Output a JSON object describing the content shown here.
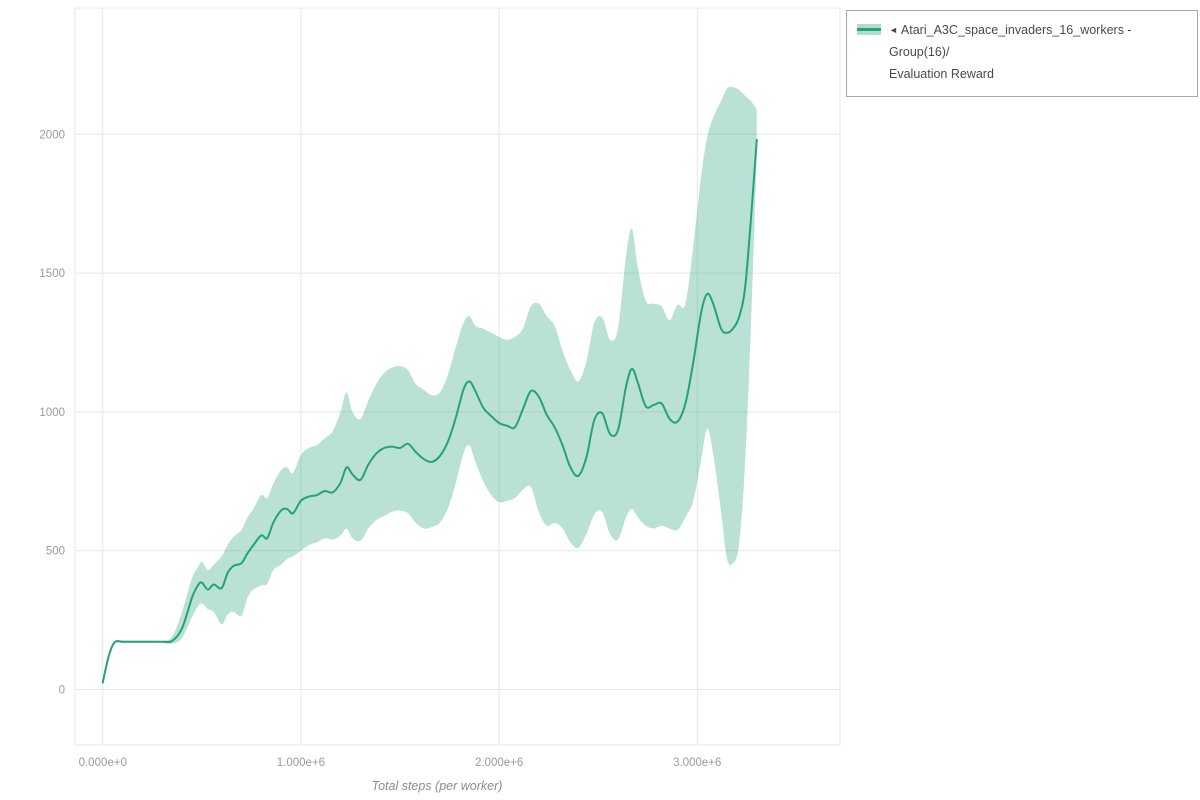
{
  "legend": {
    "collapse_arrow": "◄",
    "label_line1": "Atari_A3C_space_invaders_16_workers - Group(16)/",
    "label_line2": "Evaluation Reward"
  },
  "axes": {
    "x_label": "Total steps (per worker)",
    "x_ticks": [
      {
        "value": 0,
        "label": "0.000e+0"
      },
      {
        "value": 1000000,
        "label": "1.000e+6"
      },
      {
        "value": 2000000,
        "label": "2.000e+6"
      },
      {
        "value": 3000000,
        "label": "3.000e+6"
      }
    ],
    "y_ticks": [
      {
        "value": 0,
        "label": "0"
      },
      {
        "value": 500,
        "label": "500"
      },
      {
        "value": 1000,
        "label": "1000"
      },
      {
        "value": 1500,
        "label": "1500"
      },
      {
        "value": 2000,
        "label": "2000"
      }
    ]
  },
  "colors": {
    "line": "#26a17d",
    "band_fill": "#26a17d",
    "band_opacity": 0.32,
    "swatch_fill": "#b3dccb",
    "grid": "#e7e7e7",
    "tick_text": "#9b9b9b",
    "axis_label_text": "#8c8c8c",
    "legend_border": "#a6a6a6",
    "legend_text": "#4a4a4a",
    "background": "#ffffff"
  },
  "chart_data": {
    "type": "line",
    "title": "",
    "xlabel": "Total steps (per worker)",
    "ylabel": "",
    "xlim": [
      -140000,
      3720000
    ],
    "ylim": [
      -200,
      2455
    ],
    "grid": true,
    "legend_position": "top-right-outside",
    "series": [
      {
        "name": "Atari_A3C_space_invaders_16_workers - Group(16)/Evaluation Reward",
        "x": [
          0,
          30000,
          60000,
          100000,
          150000,
          200000,
          250000,
          300000,
          350000,
          400000,
          450000,
          480000,
          500000,
          530000,
          560000,
          600000,
          630000,
          660000,
          700000,
          730000,
          760000,
          800000,
          830000,
          860000,
          900000,
          930000,
          960000,
          1000000,
          1040000,
          1080000,
          1120000,
          1160000,
          1200000,
          1230000,
          1260000,
          1300000,
          1340000,
          1380000,
          1420000,
          1460000,
          1500000,
          1540000,
          1580000,
          1620000,
          1660000,
          1700000,
          1740000,
          1780000,
          1820000,
          1850000,
          1880000,
          1920000,
          1960000,
          2000000,
          2040000,
          2080000,
          2120000,
          2160000,
          2200000,
          2240000,
          2280000,
          2320000,
          2360000,
          2400000,
          2440000,
          2480000,
          2520000,
          2560000,
          2600000,
          2640000,
          2670000,
          2700000,
          2740000,
          2780000,
          2820000,
          2860000,
          2900000,
          2940000,
          2980000,
          3020000,
          3050000,
          3080000,
          3120000,
          3150000,
          3180000,
          3210000,
          3240000,
          3270000,
          3300000
        ],
        "mean": [
          25,
          120,
          170,
          172,
          172,
          172,
          172,
          172,
          175,
          220,
          330,
          375,
          385,
          360,
          378,
          365,
          420,
          445,
          455,
          490,
          520,
          555,
          545,
          600,
          645,
          650,
          635,
          680,
          695,
          700,
          715,
          710,
          745,
          800,
          775,
          755,
          810,
          850,
          870,
          875,
          870,
          885,
          855,
          830,
          820,
          840,
          890,
          975,
          1080,
          1110,
          1075,
          1015,
          985,
          960,
          950,
          945,
          1010,
          1075,
          1055,
          990,
          945,
          880,
          800,
          770,
          835,
          970,
          995,
          920,
          935,
          1090,
          1155,
          1105,
          1020,
          1025,
          1030,
          975,
          965,
          1030,
          1180,
          1360,
          1425,
          1390,
          1300,
          1285,
          1300,
          1340,
          1440,
          1690,
          1980
        ],
        "band_low": [
          25,
          110,
          165,
          168,
          168,
          168,
          168,
          168,
          165,
          185,
          260,
          300,
          310,
          290,
          280,
          235,
          270,
          280,
          265,
          330,
          360,
          375,
          380,
          430,
          450,
          470,
          480,
          500,
          520,
          530,
          545,
          540,
          555,
          580,
          545,
          535,
          580,
          610,
          625,
          640,
          645,
          635,
          600,
          580,
          585,
          600,
          650,
          740,
          850,
          880,
          820,
          750,
          700,
          675,
          680,
          690,
          720,
          730,
          640,
          590,
          600,
          580,
          530,
          510,
          560,
          630,
          640,
          560,
          540,
          620,
          650,
          620,
          590,
          580,
          590,
          580,
          575,
          620,
          680,
          830,
          940,
          850,
          640,
          470,
          455,
          520,
          800,
          1300,
          1930
        ],
        "band_high": [
          25,
          130,
          175,
          176,
          176,
          176,
          176,
          176,
          190,
          280,
          400,
          440,
          460,
          430,
          450,
          480,
          520,
          550,
          575,
          620,
          650,
          700,
          690,
          740,
          790,
          800,
          780,
          845,
          870,
          880,
          905,
          930,
          1000,
          1070,
          1000,
          975,
          1040,
          1100,
          1140,
          1160,
          1165,
          1150,
          1100,
          1080,
          1060,
          1070,
          1130,
          1230,
          1320,
          1345,
          1310,
          1300,
          1285,
          1270,
          1260,
          1270,
          1300,
          1380,
          1390,
          1345,
          1310,
          1220,
          1150,
          1110,
          1180,
          1320,
          1340,
          1260,
          1300,
          1560,
          1660,
          1520,
          1400,
          1390,
          1380,
          1330,
          1385,
          1390,
          1600,
          1850,
          1990,
          2060,
          2120,
          2165,
          2170,
          2160,
          2140,
          2120,
          2090
        ]
      }
    ]
  }
}
